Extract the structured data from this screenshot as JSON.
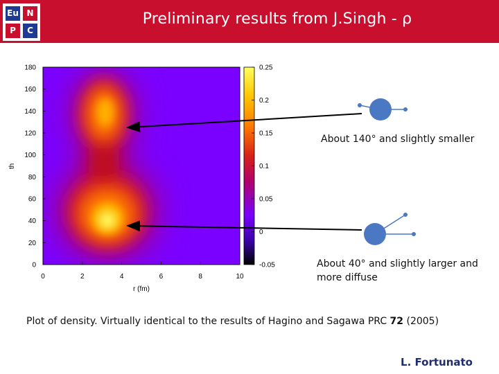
{
  "header": {
    "title": "Preliminary results from J.Singh - ρ",
    "logo_letters": [
      "Eu",
      "N",
      "P",
      "C"
    ],
    "logo_colors": [
      "#1f3a93",
      "#c8102e",
      "#c8102e",
      "#1f3a93"
    ],
    "bar_color": "#c8102e"
  },
  "chart_data": {
    "type": "heatmap",
    "xlabel": "r (fm)",
    "ylabel": "th",
    "xlim": [
      0,
      10
    ],
    "ylim": [
      0,
      180
    ],
    "xticks": [
      "0",
      "2",
      "4",
      "6",
      "8",
      "10"
    ],
    "yticks": [
      "0",
      "20",
      "40",
      "60",
      "80",
      "100",
      "120",
      "140",
      "160",
      "180"
    ],
    "colorbar_ticks": [
      "-0.05",
      "0",
      "0.05",
      "0.1",
      "0.15",
      "0.2",
      "0.25"
    ],
    "zlim": [
      -0.05,
      0.25
    ],
    "peaks": [
      {
        "r": 3.2,
        "th": 40,
        "rho": 0.215
      },
      {
        "r": 3.2,
        "th": 140,
        "rho": 0.16
      }
    ],
    "colormap": [
      "#000000",
      "#7a00ff",
      "#c8002a",
      "#ff7a00",
      "#ffe500",
      "#ffff60"
    ]
  },
  "annotations": [
    {
      "text": "About 140° and slightly smaller",
      "th": 120
    },
    {
      "text": "About 40° and slightly larger and more diffuse",
      "th": 40
    }
  ],
  "molecule_color": "#4a78c2",
  "caption": {
    "text_before": "Plot of density. Virtually identical to the results of Hagino and Sagawa PRC ",
    "bold": "72",
    "text_after": " (2005)"
  },
  "author": "L. Fortunato"
}
